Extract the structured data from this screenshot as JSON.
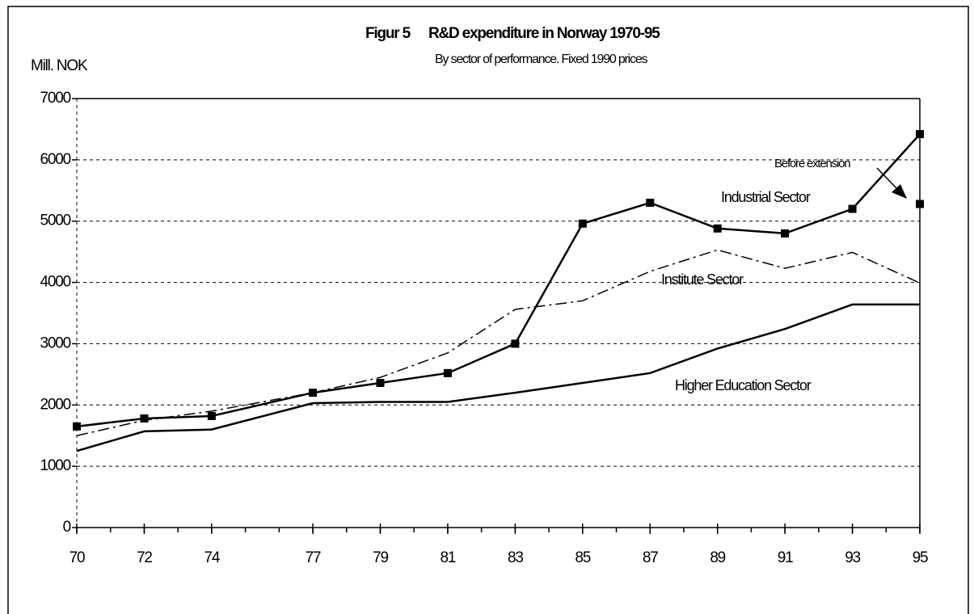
{
  "chart_data": {
    "type": "line",
    "figure_label": "Figur 5",
    "title": "R&D expenditure in Norway 1970-95",
    "subtitle": "By sector of performance. Fixed 1990 prices",
    "ylabel": "Mill. NOK",
    "x": [
      70,
      72,
      74,
      77,
      79,
      81,
      83,
      85,
      87,
      89,
      91,
      93,
      95
    ],
    "series": [
      {
        "name": "Industrial Sector",
        "color": "#000000",
        "style": "solid",
        "markers": true,
        "values": [
          1650,
          1780,
          1820,
          2200,
          2360,
          2520,
          3000,
          4960,
          5300,
          4880,
          4800,
          5200,
          6420
        ]
      },
      {
        "name": "Institute Sector",
        "color": "#000000",
        "style": "dashdot",
        "markers": false,
        "values": [
          1500,
          1750,
          1900,
          2200,
          2450,
          2850,
          3560,
          3700,
          4180,
          4530,
          4230,
          4490,
          3990
        ]
      },
      {
        "name": "Higher Education Sector",
        "color": "#000000",
        "style": "solid",
        "markers": false,
        "values": [
          1250,
          1570,
          1600,
          2030,
          2050,
          2050,
          2200,
          2360,
          2520,
          2920,
          3240,
          3640,
          3640
        ]
      }
    ],
    "annotation": {
      "text": "Before extension",
      "x": 95,
      "y": 5280
    },
    "xlim": [
      70,
      95
    ],
    "xticks": [
      70,
      72,
      74,
      77,
      79,
      81,
      83,
      85,
      87,
      89,
      91,
      93,
      95
    ],
    "xminorticks": [
      70,
      71,
      72,
      73,
      74,
      75,
      76,
      77,
      78,
      79,
      80,
      81,
      82,
      83,
      84,
      85,
      86,
      87,
      88,
      89,
      90,
      91,
      92,
      93,
      94,
      95
    ],
    "ylim": [
      0,
      7000
    ],
    "yticks": [
      0,
      1000,
      2000,
      3000,
      4000,
      5000,
      6000,
      7000
    ],
    "grid": true
  }
}
